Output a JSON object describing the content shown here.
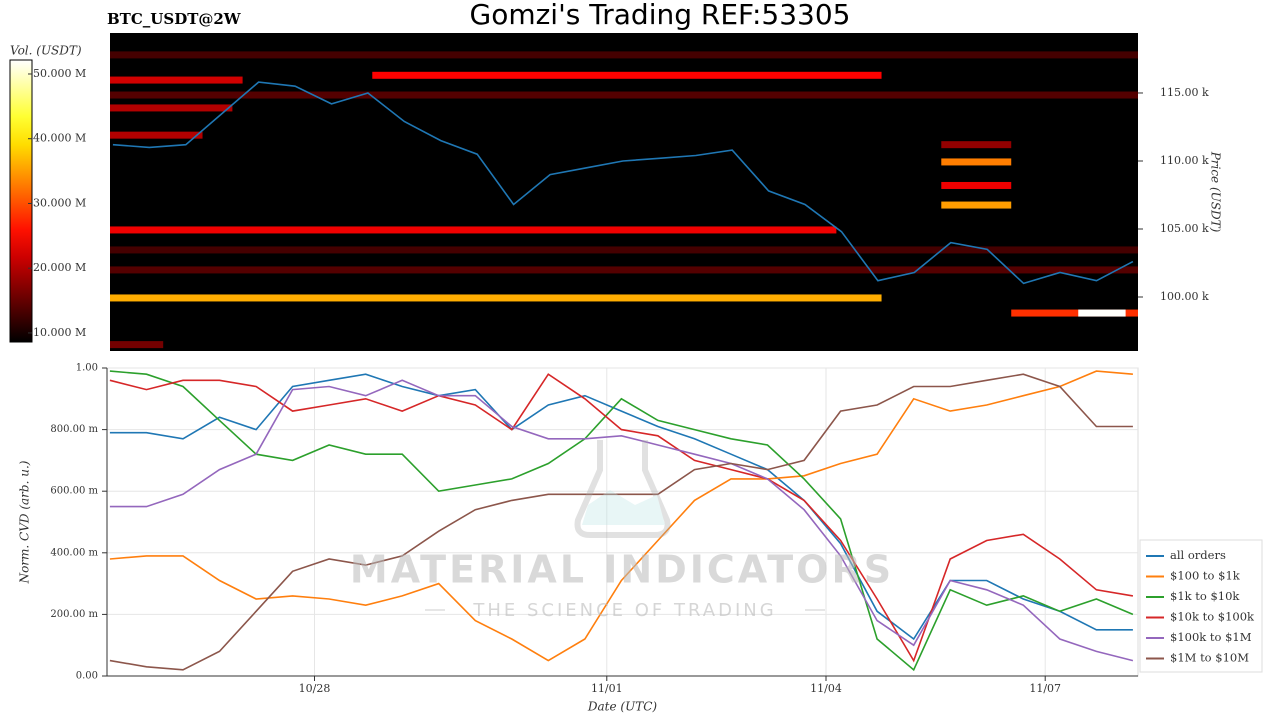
{
  "header": {
    "title": "Gomzi's Trading REF:53305",
    "symbol": "BTC_USDT@2W"
  },
  "watermark": {
    "brand": "MATERIAL INDICATORS",
    "tagline": "THE SCIENCE OF TRADING"
  },
  "chart_data": [
    {
      "type": "heatmap",
      "colorbar_label": "Vol. (USDT)",
      "clim": [
        8600000,
        52160000
      ],
      "cticks": [
        {
          "value": 10000000,
          "label": "10.000 M"
        },
        {
          "value": 20000000,
          "label": "20.000 M"
        },
        {
          "value": 30000000,
          "label": "30.000 M"
        },
        {
          "value": 40000000,
          "label": "40.000 M"
        },
        {
          "value": 50000000,
          "label": "50.000 M"
        }
      ],
      "y2_label": "Price (USDT)",
      "y2lim": [
        96030,
        119410
      ],
      "y2ticks": [
        {
          "value": 100000,
          "label": "100.00 k"
        },
        {
          "value": 105000,
          "label": "105.00 k"
        },
        {
          "value": 110000,
          "label": "110.00 k"
        },
        {
          "value": 115000,
          "label": "115.00 k"
        }
      ],
      "xlim": [
        298.16,
        312.27
      ],
      "bands": [
        {
          "price": 117800,
          "from": 298.16,
          "to": 312.27,
          "volume": 13000000
        },
        {
          "price": 116300,
          "from": 301.76,
          "to": 308.75,
          "volume": 25000000
        },
        {
          "price": 115950,
          "from": 298.16,
          "to": 299.98,
          "volume": 22000000
        },
        {
          "price": 114850,
          "from": 298.16,
          "to": 312.27,
          "volume": 14000000
        },
        {
          "price": 113900,
          "from": 298.16,
          "to": 299.84,
          "volume": 20000000
        },
        {
          "price": 111900,
          "from": 298.16,
          "to": 299.43,
          "volume": 20000000
        },
        {
          "price": 111200,
          "from": 309.57,
          "to": 310.53,
          "volume": 18000000
        },
        {
          "price": 109930,
          "from": 309.57,
          "to": 310.53,
          "volume": 33000000
        },
        {
          "price": 108200,
          "from": 309.57,
          "to": 310.53,
          "volume": 24000000
        },
        {
          "price": 106760,
          "from": 309.57,
          "to": 310.53,
          "volume": 35000000
        },
        {
          "price": 104930,
          "from": 298.16,
          "to": 308.13,
          "volume": 24000000
        },
        {
          "price": 103460,
          "from": 298.16,
          "to": 312.27,
          "volume": 13000000
        },
        {
          "price": 101990,
          "from": 298.16,
          "to": 312.27,
          "volume": 14000000
        },
        {
          "price": 99930,
          "from": 298.16,
          "to": 308.75,
          "volume": 36000000
        },
        {
          "price": 98820,
          "from": 310.53,
          "to": 312.27,
          "volume": 28000000
        },
        {
          "price": 98820,
          "from": 311.45,
          "to": 312.1,
          "volume": 52000000
        },
        {
          "price": 96500,
          "from": 298.16,
          "to": 298.89,
          "volume": 16000000
        }
      ],
      "price_line": {
        "color": "#1f77b4",
        "x": [
          298.2,
          298.7,
          299.2,
          299.7,
          300.2,
          300.7,
          301.2,
          301.7,
          302.2,
          302.7,
          303.2,
          303.7,
          304.2,
          304.7,
          305.2,
          305.7,
          306.2,
          306.7,
          307.2,
          307.7,
          308.2,
          308.7,
          309.2,
          309.7,
          310.2,
          310.7,
          311.2,
          311.7,
          312.2
        ],
        "values": [
          111200,
          111000,
          111200,
          113500,
          115800,
          115500,
          114200,
          115000,
          112900,
          111500,
          110500,
          106800,
          109000,
          109500,
          110000,
          110200,
          110400,
          110800,
          107800,
          106800,
          104800,
          101200,
          101800,
          104000,
          103500,
          101000,
          101800,
          101200,
          102600
        ]
      }
    },
    {
      "type": "line",
      "xlabel": "Date (UTC)",
      "ylabel": "Norm. CVD (arb. u.)",
      "xlim": [
        298.16,
        312.27
      ],
      "xticks": [
        {
          "value": 301,
          "label": "10/28"
        },
        {
          "value": 305,
          "label": "11/01"
        },
        {
          "value": 308,
          "label": "11/04"
        },
        {
          "value": 311,
          "label": "11/07"
        }
      ],
      "ylim": [
        0,
        1
      ],
      "yticks": [
        {
          "value": 0,
          "label": "0.00"
        },
        {
          "value": 0.2,
          "label": "200.00 m"
        },
        {
          "value": 0.4,
          "label": "400.00 m"
        },
        {
          "value": 0.6,
          "label": "600.00 m"
        },
        {
          "value": 0.8,
          "label": "800.00 m"
        },
        {
          "value": 1,
          "label": "1.00"
        }
      ],
      "grid": true,
      "legend": "right",
      "x": [
        298.2,
        298.7,
        299.2,
        299.7,
        300.2,
        300.7,
        301.2,
        301.7,
        302.2,
        302.7,
        303.2,
        303.7,
        304.2,
        304.7,
        305.2,
        305.7,
        306.2,
        306.7,
        307.2,
        307.7,
        308.2,
        308.7,
        309.2,
        309.7,
        310.2,
        310.7,
        311.2,
        311.7,
        312.2
      ],
      "series": [
        {
          "name": "all orders",
          "color": "#1f77b4",
          "values": [
            0.79,
            0.79,
            0.77,
            0.84,
            0.8,
            0.94,
            0.96,
            0.98,
            0.94,
            0.91,
            0.93,
            0.8,
            0.88,
            0.91,
            0.86,
            0.81,
            0.77,
            0.72,
            0.67,
            0.57,
            0.43,
            0.21,
            0.12,
            0.31,
            0.31,
            0.25,
            0.21,
            0.15,
            0.15
          ]
        },
        {
          "name": "$100 to $1k",
          "color": "#ff7f0e",
          "values": [
            0.38,
            0.39,
            0.39,
            0.31,
            0.25,
            0.26,
            0.25,
            0.23,
            0.26,
            0.3,
            0.18,
            0.12,
            0.05,
            0.12,
            0.31,
            0.44,
            0.57,
            0.64,
            0.64,
            0.65,
            0.69,
            0.72,
            0.9,
            0.86,
            0.88,
            0.91,
            0.94,
            0.99,
            0.98
          ]
        },
        {
          "name": "$1k to $10k",
          "color": "#2ca02c",
          "values": [
            0.99,
            0.98,
            0.94,
            0.83,
            0.72,
            0.7,
            0.75,
            0.72,
            0.72,
            0.6,
            0.62,
            0.64,
            0.69,
            0.77,
            0.9,
            0.83,
            0.8,
            0.77,
            0.75,
            0.64,
            0.51,
            0.12,
            0.02,
            0.28,
            0.23,
            0.26,
            0.21,
            0.25,
            0.2
          ]
        },
        {
          "name": "$10k to $100k",
          "color": "#d62728",
          "values": [
            0.96,
            0.93,
            0.96,
            0.96,
            0.94,
            0.86,
            0.88,
            0.9,
            0.86,
            0.91,
            0.88,
            0.8,
            0.98,
            0.9,
            0.8,
            0.78,
            0.7,
            0.67,
            0.64,
            0.57,
            0.44,
            0.25,
            0.05,
            0.38,
            0.44,
            0.46,
            0.38,
            0.28,
            0.26
          ]
        },
        {
          "name": "$100k to $1M",
          "color": "#9467bd",
          "values": [
            0.55,
            0.55,
            0.59,
            0.67,
            0.72,
            0.93,
            0.94,
            0.91,
            0.96,
            0.91,
            0.91,
            0.81,
            0.77,
            0.77,
            0.78,
            0.75,
            0.72,
            0.69,
            0.64,
            0.54,
            0.39,
            0.18,
            0.1,
            0.31,
            0.28,
            0.23,
            0.12,
            0.08,
            0.05
          ]
        },
        {
          "name": "$1M to $10M",
          "color": "#8c564b",
          "values": [
            0.05,
            0.03,
            0.02,
            0.08,
            0.21,
            0.34,
            0.38,
            0.36,
            0.39,
            0.47,
            0.54,
            0.57,
            0.59,
            0.59,
            0.59,
            0.59,
            0.67,
            0.69,
            0.67,
            0.7,
            0.86,
            0.88,
            0.94,
            0.94,
            0.96,
            0.98,
            0.94,
            0.81,
            0.81
          ]
        }
      ]
    }
  ]
}
